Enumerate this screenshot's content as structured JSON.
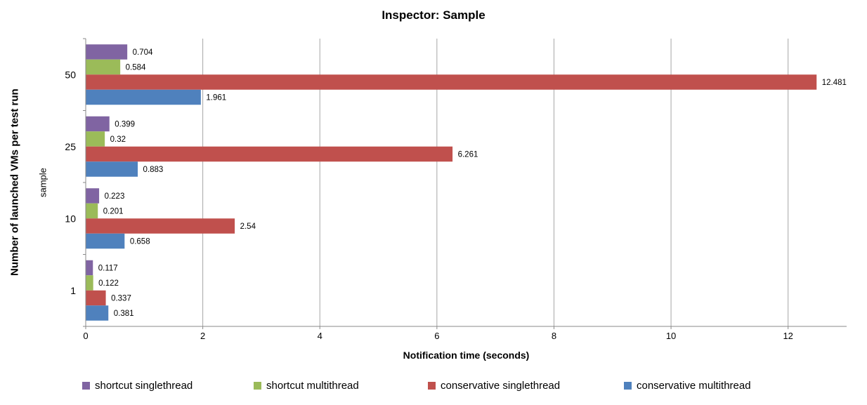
{
  "title": "Inspector: Sample",
  "chart_data": {
    "type": "bar",
    "orientation": "horizontal",
    "title": "Inspector: Sample",
    "xlabel": "Notification time (seconds)",
    "ylabel": "Number of launched VMs per test run",
    "ylabel_inner": "sample",
    "categories": [
      "50",
      "25",
      "10",
      "1"
    ],
    "series": [
      {
        "name": "shortcut singlethread",
        "color": "#8064A2",
        "values": [
          0.704,
          0.399,
          0.223,
          0.117
        ],
        "labels": [
          "0.704",
          "0.399",
          "0.223",
          "0.117"
        ]
      },
      {
        "name": "shortcut multithread",
        "color": "#9BBB59",
        "values": [
          0.584,
          0.32,
          0.201,
          0.122
        ],
        "labels": [
          "0.584",
          "0.32",
          "0.201",
          "0.122"
        ]
      },
      {
        "name": "conservative singlethread",
        "color": "#C0504D",
        "values": [
          12.481,
          6.261,
          2.54,
          0.337
        ],
        "labels": [
          "12.481",
          "6.261",
          "2.54",
          "0.337"
        ]
      },
      {
        "name": "conservative multithread",
        "color": "#4F81BD",
        "values": [
          1.961,
          0.883,
          0.658,
          0.381
        ],
        "labels": [
          "1.961",
          "0.883",
          "0.658",
          "0.381"
        ]
      }
    ],
    "xlim": [
      0,
      13
    ],
    "xticks": [
      "0",
      "2",
      "4",
      "6",
      "8",
      "10",
      "12"
    ],
    "grid": true,
    "legend_position": "bottom",
    "axis_color": "#898989",
    "grid_color": "#A6A6A6",
    "label_color": "#000000"
  }
}
